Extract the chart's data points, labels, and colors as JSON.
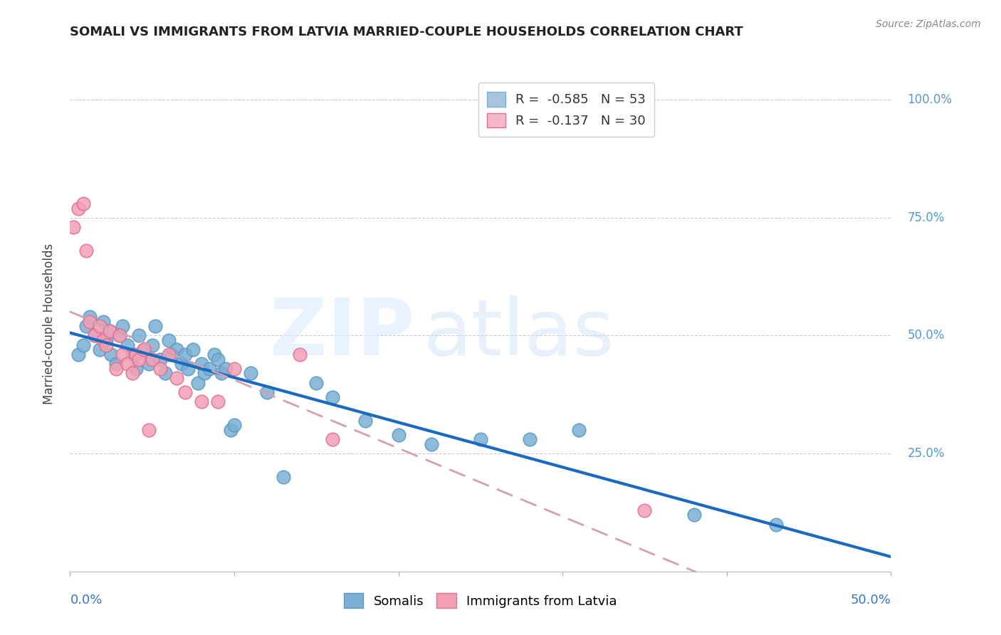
{
  "title": "SOMALI VS IMMIGRANTS FROM LATVIA MARRIED-COUPLE HOUSEHOLDS CORRELATION CHART",
  "source": "Source: ZipAtlas.com",
  "ylabel": "Married-couple Households",
  "xlim": [
    0.0,
    0.5
  ],
  "ylim": [
    0.0,
    1.05
  ],
  "ytick_values": [
    0.0,
    0.25,
    0.5,
    0.75,
    1.0
  ],
  "ytick_labels_right": [
    "",
    "25.0%",
    "50.0%",
    "75.0%",
    "100.0%"
  ],
  "somali_color": "#7bafd4",
  "somali_edge": "#5a9abf",
  "latvia_color": "#f4a0b5",
  "latvia_edge": "#e07090",
  "somali_x": [
    0.005,
    0.008,
    0.01,
    0.012,
    0.015,
    0.018,
    0.02,
    0.022,
    0.024,
    0.025,
    0.028,
    0.03,
    0.032,
    0.035,
    0.038,
    0.04,
    0.042,
    0.045,
    0.048,
    0.05,
    0.052,
    0.055,
    0.058,
    0.06,
    0.062,
    0.065,
    0.068,
    0.07,
    0.072,
    0.075,
    0.078,
    0.08,
    0.082,
    0.085,
    0.088,
    0.09,
    0.092,
    0.095,
    0.098,
    0.1,
    0.11,
    0.12,
    0.13,
    0.15,
    0.16,
    0.18,
    0.2,
    0.22,
    0.25,
    0.28,
    0.31,
    0.38,
    0.43
  ],
  "somali_y": [
    0.46,
    0.48,
    0.52,
    0.54,
    0.5,
    0.47,
    0.53,
    0.49,
    0.51,
    0.46,
    0.44,
    0.5,
    0.52,
    0.48,
    0.46,
    0.43,
    0.5,
    0.47,
    0.44,
    0.48,
    0.52,
    0.45,
    0.42,
    0.49,
    0.46,
    0.47,
    0.44,
    0.46,
    0.43,
    0.47,
    0.4,
    0.44,
    0.42,
    0.43,
    0.46,
    0.45,
    0.42,
    0.43,
    0.3,
    0.31,
    0.42,
    0.38,
    0.2,
    0.4,
    0.37,
    0.32,
    0.29,
    0.27,
    0.28,
    0.28,
    0.3,
    0.12,
    0.1
  ],
  "latvia_x": [
    0.002,
    0.005,
    0.008,
    0.01,
    0.012,
    0.015,
    0.018,
    0.02,
    0.022,
    0.024,
    0.028,
    0.03,
    0.032,
    0.035,
    0.038,
    0.04,
    0.042,
    0.045,
    0.048,
    0.05,
    0.055,
    0.06,
    0.065,
    0.07,
    0.08,
    0.09,
    0.1,
    0.14,
    0.16,
    0.35
  ],
  "latvia_y": [
    0.73,
    0.77,
    0.78,
    0.68,
    0.53,
    0.5,
    0.52,
    0.49,
    0.48,
    0.51,
    0.43,
    0.5,
    0.46,
    0.44,
    0.42,
    0.46,
    0.45,
    0.47,
    0.3,
    0.45,
    0.43,
    0.46,
    0.41,
    0.38,
    0.36,
    0.36,
    0.43,
    0.46,
    0.28,
    0.13
  ],
  "somali_line_color": "#1a6abf",
  "latvia_line_color": "#d4a0b0",
  "background_color": "#ffffff",
  "grid_color": "#cccccc",
  "right_tick_color": "#5599cc",
  "legend1_label": "R =  -0.585   N = 53",
  "legend2_label": "R =  -0.137   N = 30",
  "legend1_color": "#a8c4e0",
  "legend2_color": "#f4b8c8",
  "legend1_edge": "#7bafd4",
  "legend2_edge": "#e07090",
  "watermark_zip": "ZIP",
  "watermark_atlas": "atlas"
}
